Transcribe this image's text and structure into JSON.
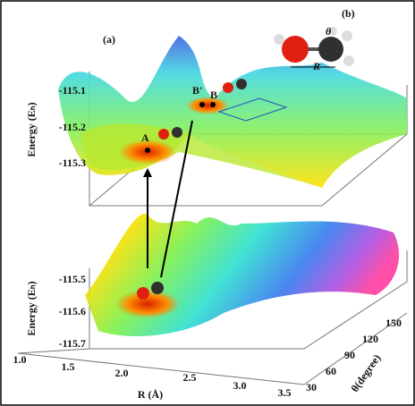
{
  "panel_a": {
    "label": "(a)",
    "upper": {
      "energy_label": "Energy (Eₕ)",
      "energy_ticks": [
        "-115.1",
        "-115.2",
        "-115.3"
      ],
      "points": [
        "A",
        "B'",
        "B"
      ]
    },
    "lower": {
      "energy_label": "Energy (Eₕ)",
      "energy_ticks": [
        "-115.5",
        "-115.6",
        "-115.7"
      ]
    },
    "r_axis": {
      "label": "R (Å)",
      "ticks": [
        "1.0",
        "1.5",
        "2.0",
        "2.5",
        "3.0",
        "3.5"
      ]
    },
    "theta_axis": {
      "label": "θ(degree)",
      "ticks": [
        "30",
        "60",
        "90",
        "120",
        "150"
      ]
    }
  },
  "panel_b": {
    "label": "(b)",
    "angle": "θ",
    "distance": "R"
  }
}
